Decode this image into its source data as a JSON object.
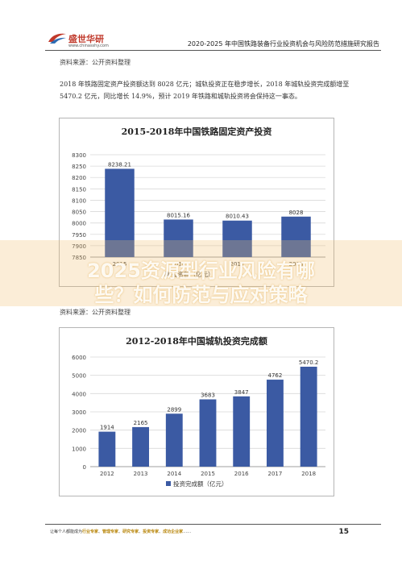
{
  "header": {
    "logo_text": "盛世华研",
    "logo_sub": "www.chinasshy.com",
    "title": "2020-2025 年中国铁路装备行业投资机会与风险防范措施研究报告"
  },
  "source_line_1": "资料来源：公开资料整理",
  "paragraph": "2018 年铁路固定资产投资额达到 8028 亿元；城轨投资正在稳步增长，2018 年城轨投资完成额增至 5470.2 亿元，同比增长 14.9%，预计 2019 年铁路和城轨投资将会保持这一事态。",
  "overlay": {
    "line1": "2025资源型行业风险有哪",
    "line2": "些？如何防范与应对策略"
  },
  "source_line_2": "资料来源：公开资料整理",
  "footer": {
    "lead": "让每个人都能成为",
    "items": [
      "行业专家",
      "管理专家",
      "研究专家",
      "投资专家",
      "成功企业家"
    ],
    "tail": "……",
    "page_number": "15"
  },
  "chart_data": [
    {
      "type": "bar",
      "title": "2015-2018年中国铁路固定资产投资",
      "categories": [
        "2015",
        "2016",
        "2017",
        "2018"
      ],
      "values": [
        8238.21,
        8015.16,
        8010.43,
        8028
      ],
      "value_labels": [
        "8238.21",
        "8015.16",
        "8010.43",
        "8028"
      ],
      "ylim": [
        7850,
        8300
      ],
      "yticks": [
        7850,
        7900,
        7950,
        8000,
        8050,
        8100,
        8150,
        8200,
        8250,
        8300
      ],
      "legend": "投资额（亿元）",
      "legend_position": "bottom",
      "color": "#3b5aa3",
      "grid": true
    },
    {
      "type": "bar",
      "title": "2012-2018年中国城轨投资完成额",
      "categories": [
        "2012",
        "2013",
        "2014",
        "2015",
        "2016",
        "2017",
        "2018"
      ],
      "values": [
        1914,
        2165,
        2899,
        3683,
        3847,
        4762,
        5470.2
      ],
      "value_labels": [
        "1914",
        "2165",
        "2899",
        "3683",
        "3847",
        "4762",
        "5470.2"
      ],
      "ylim": [
        0,
        6000
      ],
      "yticks": [
        0,
        1000,
        2000,
        3000,
        4000,
        5000,
        6000
      ],
      "legend": "投资完成额（亿元）",
      "legend_position": "bottom",
      "color": "#3b5aa3",
      "grid": true
    }
  ]
}
